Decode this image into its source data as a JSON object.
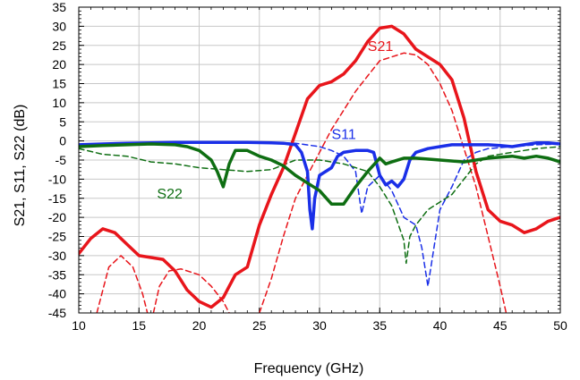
{
  "chart_data": {
    "type": "line",
    "title": "",
    "xlabel": "Frequency (GHz)",
    "ylabel": "S21, S11, S22 (dB)",
    "xlim": [
      10,
      50
    ],
    "ylim": [
      -45,
      35
    ],
    "xticks": [
      10,
      15,
      20,
      25,
      30,
      35,
      40,
      45,
      50
    ],
    "yticks": [
      35,
      30,
      25,
      20,
      15,
      10,
      5,
      0,
      -5,
      -10,
      -15,
      -20,
      -25,
      -30,
      -35,
      -40,
      -45
    ],
    "grid": true,
    "legend": "none",
    "series": [
      {
        "name": "S21",
        "style": "solid",
        "color": "#e8151b",
        "points": [
          [
            10,
            -29.5
          ],
          [
            11,
            -25.5
          ],
          [
            12,
            -23
          ],
          [
            13,
            -24
          ],
          [
            14,
            -27
          ],
          [
            15,
            -30
          ],
          [
            16,
            -30.5
          ],
          [
            17,
            -31
          ],
          [
            18,
            -34
          ],
          [
            19,
            -39
          ],
          [
            20,
            -42
          ],
          [
            21,
            -43.5
          ],
          [
            22,
            -41
          ],
          [
            23,
            -35
          ],
          [
            24,
            -33
          ],
          [
            25,
            -22
          ],
          [
            26,
            -14
          ],
          [
            27,
            -7
          ],
          [
            28,
            2
          ],
          [
            29,
            11
          ],
          [
            30,
            14.5
          ],
          [
            31,
            15.5
          ],
          [
            32,
            17.5
          ],
          [
            33,
            21
          ],
          [
            34,
            26
          ],
          [
            35,
            29.5
          ],
          [
            36,
            30
          ],
          [
            37,
            28
          ],
          [
            38,
            24
          ],
          [
            39,
            22
          ],
          [
            40,
            20
          ],
          [
            41,
            16
          ],
          [
            42,
            6
          ],
          [
            43,
            -8
          ],
          [
            44,
            -18
          ],
          [
            45,
            -21
          ],
          [
            46,
            -22
          ],
          [
            47,
            -24
          ],
          [
            48,
            -23
          ],
          [
            49,
            -21
          ],
          [
            50,
            -20
          ]
        ]
      },
      {
        "name": "S11",
        "style": "solid",
        "color": "#1a2fe8",
        "points": [
          [
            10,
            -1
          ],
          [
            12,
            -0.8
          ],
          [
            14,
            -0.6
          ],
          [
            16,
            -0.5
          ],
          [
            18,
            -0.4
          ],
          [
            20,
            -0.4
          ],
          [
            22,
            -0.4
          ],
          [
            24,
            -0.4
          ],
          [
            26,
            -0.5
          ],
          [
            27,
            -0.6
          ],
          [
            28,
            -1
          ],
          [
            28.5,
            -3
          ],
          [
            29,
            -8
          ],
          [
            29.2,
            -18
          ],
          [
            29.4,
            -23
          ],
          [
            29.6,
            -15
          ],
          [
            30,
            -9
          ],
          [
            31,
            -7
          ],
          [
            31.5,
            -4
          ],
          [
            32,
            -3
          ],
          [
            33,
            -2.5
          ],
          [
            34,
            -2.5
          ],
          [
            34.5,
            -3
          ],
          [
            35,
            -9
          ],
          [
            35.5,
            -11.5
          ],
          [
            36,
            -10.5
          ],
          [
            36.5,
            -12
          ],
          [
            37,
            -10
          ],
          [
            37.5,
            -5
          ],
          [
            38,
            -3
          ],
          [
            39,
            -2
          ],
          [
            40,
            -1.5
          ],
          [
            41,
            -1
          ],
          [
            42,
            -1
          ],
          [
            43,
            -1
          ],
          [
            44,
            -1
          ],
          [
            45,
            -1.2
          ],
          [
            46,
            -1.5
          ],
          [
            47,
            -1
          ],
          [
            48,
            -0.5
          ],
          [
            49,
            -0.5
          ],
          [
            50,
            -0.8
          ]
        ]
      },
      {
        "name": "S22",
        "style": "solid",
        "color": "#0e6e12",
        "points": [
          [
            10,
            -1.5
          ],
          [
            12,
            -1.2
          ],
          [
            14,
            -1
          ],
          [
            16,
            -0.8
          ],
          [
            18,
            -1
          ],
          [
            19,
            -1.5
          ],
          [
            20,
            -2.5
          ],
          [
            21,
            -5
          ],
          [
            21.5,
            -8
          ],
          [
            22,
            -12
          ],
          [
            22.5,
            -6
          ],
          [
            23,
            -2.5
          ],
          [
            24,
            -2.5
          ],
          [
            25,
            -4
          ],
          [
            26,
            -5
          ],
          [
            27,
            -6.5
          ],
          [
            28,
            -9
          ],
          [
            29,
            -11
          ],
          [
            30,
            -13
          ],
          [
            31,
            -16.5
          ],
          [
            32,
            -16.5
          ],
          [
            33,
            -12
          ],
          [
            34,
            -8
          ],
          [
            35,
            -4.5
          ],
          [
            35.5,
            -6
          ],
          [
            36,
            -5.5
          ],
          [
            37,
            -4.5
          ],
          [
            38,
            -4.5
          ],
          [
            40,
            -5
          ],
          [
            42,
            -5.5
          ],
          [
            44,
            -4.5
          ],
          [
            46,
            -4
          ],
          [
            47,
            -4.5
          ],
          [
            48,
            -4
          ],
          [
            49,
            -4.5
          ],
          [
            50,
            -5.5
          ]
        ]
      },
      {
        "name": "S21 (dashed)",
        "style": "dashed",
        "color": "#e8151b",
        "segments": [
          [
            [
              11.5,
              -45
            ],
            [
              12.5,
              -33
            ],
            [
              13.5,
              -30
            ],
            [
              14.5,
              -33
            ],
            [
              15.3,
              -40
            ],
            [
              15.7,
              -45
            ]
          ],
          [
            [
              16.2,
              -45
            ],
            [
              16.7,
              -38
            ],
            [
              17.5,
              -34
            ],
            [
              18.5,
              -33.5
            ],
            [
              20,
              -35
            ],
            [
              21,
              -38
            ],
            [
              22,
              -42
            ],
            [
              22.5,
              -45
            ]
          ],
          [
            [
              25,
              -45
            ],
            [
              26,
              -36
            ],
            [
              27,
              -25
            ],
            [
              28,
              -15
            ],
            [
              29,
              -9
            ],
            [
              30,
              -3
            ],
            [
              31,
              3
            ],
            [
              32,
              8
            ],
            [
              33,
              13
            ],
            [
              34,
              17
            ],
            [
              35,
              21
            ],
            [
              36,
              22
            ],
            [
              37,
              23
            ],
            [
              38,
              22.5
            ],
            [
              39,
              20
            ],
            [
              40,
              15
            ],
            [
              41,
              8
            ],
            [
              42,
              -2
            ],
            [
              43,
              -12
            ],
            [
              44,
              -25
            ],
            [
              45,
              -38
            ],
            [
              45.5,
              -45
            ]
          ]
        ]
      },
      {
        "name": "S11 (dashed)",
        "style": "dashed",
        "color": "#1a2fe8",
        "points": [
          [
            10,
            -1.5
          ],
          [
            14,
            -1
          ],
          [
            18,
            -0.6
          ],
          [
            22,
            -0.4
          ],
          [
            26,
            -0.4
          ],
          [
            28,
            -0.6
          ],
          [
            30,
            -1.5
          ],
          [
            31,
            -2.5
          ],
          [
            32,
            -4
          ],
          [
            33,
            -8
          ],
          [
            33.5,
            -19
          ],
          [
            34,
            -12
          ],
          [
            35,
            -9
          ],
          [
            36,
            -13
          ],
          [
            37,
            -20
          ],
          [
            38,
            -22
          ],
          [
            38.5,
            -28
          ],
          [
            39,
            -38
          ],
          [
            39.5,
            -28
          ],
          [
            40,
            -18
          ],
          [
            41,
            -12
          ],
          [
            42,
            -5
          ],
          [
            43,
            -3
          ],
          [
            44,
            -2
          ],
          [
            46,
            -1.5
          ],
          [
            48,
            -1
          ],
          [
            50,
            -0.8
          ]
        ]
      },
      {
        "name": "S22 (dashed)",
        "style": "dashed",
        "color": "#0e6e12",
        "points": [
          [
            10,
            -2
          ],
          [
            12,
            -3.5
          ],
          [
            14,
            -4
          ],
          [
            16,
            -5.5
          ],
          [
            18,
            -6
          ],
          [
            20,
            -7
          ],
          [
            22,
            -7.5
          ],
          [
            24,
            -8
          ],
          [
            26,
            -7.5
          ],
          [
            28,
            -5
          ],
          [
            30,
            -5
          ],
          [
            31,
            -5.5
          ],
          [
            32,
            -6
          ],
          [
            34,
            -8
          ],
          [
            35,
            -12
          ],
          [
            36,
            -17
          ],
          [
            37,
            -26
          ],
          [
            37.2,
            -32
          ],
          [
            37.5,
            -25
          ],
          [
            38,
            -22
          ],
          [
            39,
            -18
          ],
          [
            40,
            -16
          ],
          [
            41,
            -14
          ],
          [
            42,
            -10
          ],
          [
            43,
            -6
          ],
          [
            44,
            -4
          ],
          [
            46,
            -3
          ],
          [
            48,
            -2
          ],
          [
            50,
            -1.5
          ]
        ]
      }
    ],
    "annotations": [
      {
        "text": "S21",
        "x": 34,
        "y": 23.5,
        "color": "#e8151b"
      },
      {
        "text": "S11",
        "x": 31,
        "y": 0.5,
        "color": "#1a2fe8"
      },
      {
        "text": "S22",
        "x": 16.5,
        "y": -15,
        "color": "#0e6e12"
      }
    ]
  }
}
